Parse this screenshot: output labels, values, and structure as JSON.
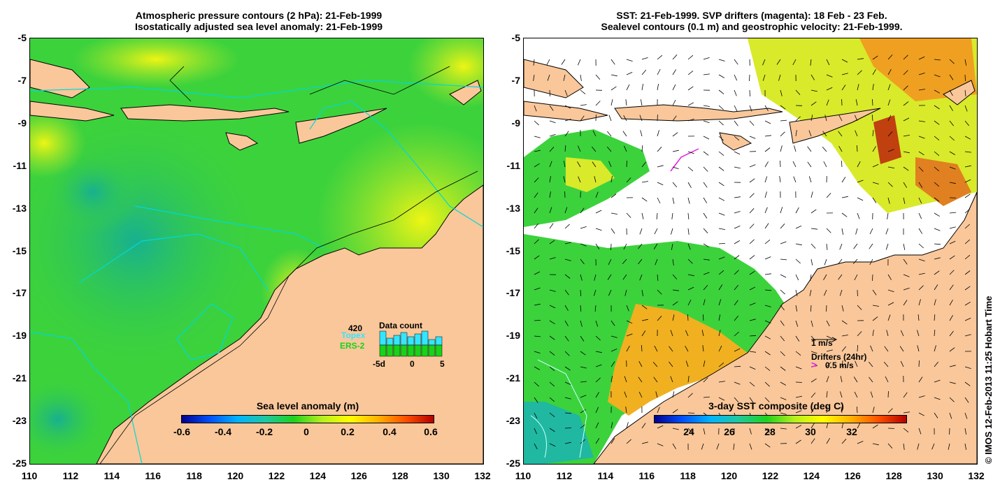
{
  "left_panel": {
    "title_line1": "Atmospheric pressure contours (2 hPa): 21-Feb-1999",
    "title_line2": "Isostatically adjusted sea level anomaly: 21-Feb-1999",
    "colorbar": {
      "title": "Sea level anomaly (m)",
      "ticks": [
        "-0.6",
        "-0.4",
        "-0.2",
        "0",
        "0.2",
        "0.4",
        "0.6"
      ],
      "min": -0.6,
      "max": 0.6
    },
    "data_count": {
      "title": "Data count",
      "max_label": "420",
      "series1": "Topex",
      "series2": "ERS-2",
      "axis_ticks": [
        "-5d",
        "0",
        "5"
      ],
      "topex_color": "#33e5ff",
      "ers2_color": "#19d219"
    }
  },
  "right_panel": {
    "title_line1": "SST: 21-Feb-1999. SVP drifters (magenta): 18 Feb - 23 Feb.",
    "title_line2": "Sealevel contours (0.1 m) and geostrophic velocity: 21-Feb-1999.",
    "colorbar": {
      "title": "3-day SST composite (deg C)",
      "ticks": [
        "24",
        "26",
        "28",
        "30",
        "32"
      ]
    },
    "velocity_scale": "1 m/s",
    "drifters_label": "Drifters (24hr)",
    "drifters_scale": "0.5 m/s",
    "drifter_color": "#e020e0"
  },
  "axes": {
    "x_ticks": [
      "110",
      "112",
      "114",
      "116",
      "118",
      "120",
      "122",
      "124",
      "126",
      "128",
      "130",
      "132"
    ],
    "y_ticks": [
      "-5",
      "-7",
      "-9",
      "-11",
      "-13",
      "-15",
      "-17",
      "-19",
      "-21",
      "-23",
      "-25"
    ],
    "lon_range": [
      110,
      132
    ],
    "lat_range": [
      -25,
      -5
    ]
  },
  "copyright": "© IMOS 12-Feb-2013 11:25 Hobart Time",
  "colors": {
    "land": "#f9c79a",
    "ocean_green": "#3cd23c",
    "ocean_teal": "#1fb48c",
    "ocean_yellow": "#e6f014",
    "sst_white": "#ffffff"
  }
}
